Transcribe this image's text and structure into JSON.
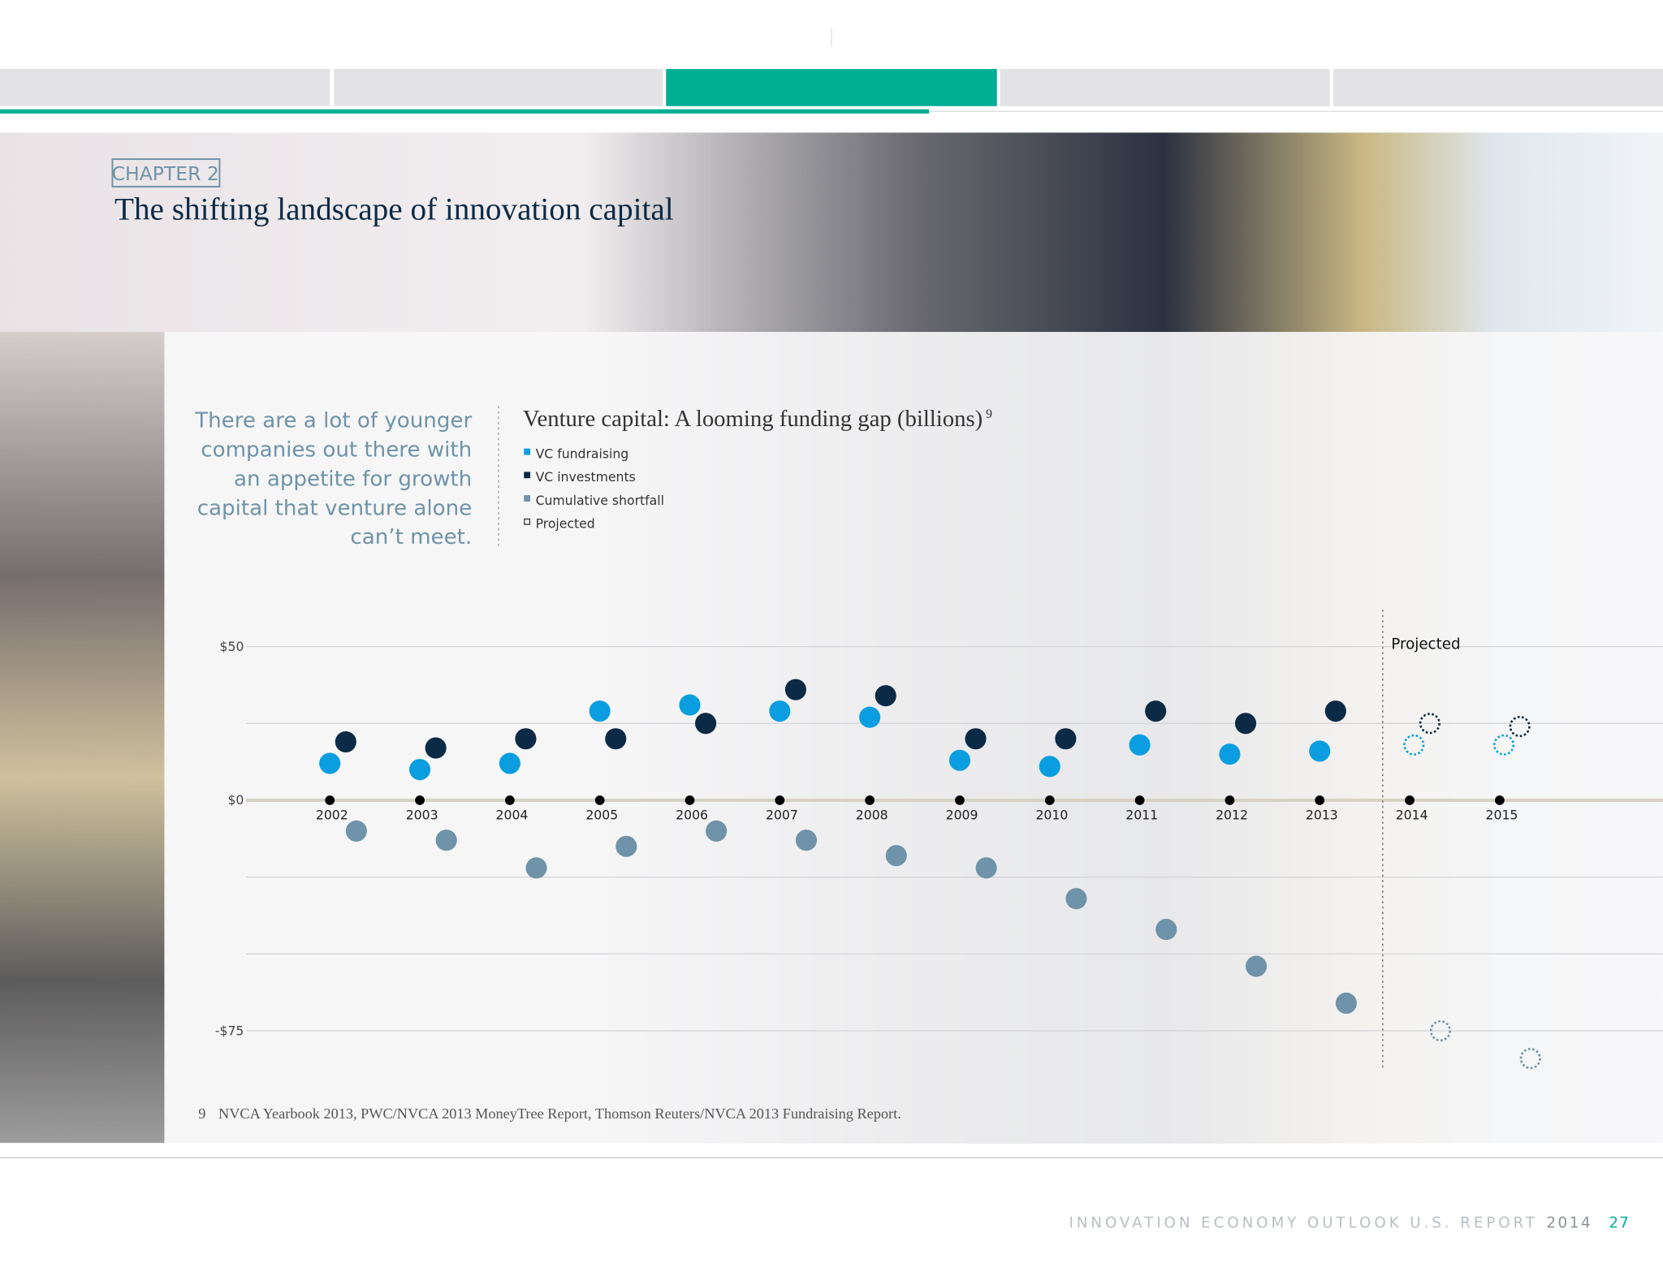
{
  "header": {
    "chapter": "CHAPTER 2",
    "title": "The shifting landscape of innovation capital"
  },
  "quote": [
    "There are a lot of younger",
    "companies out there with",
    "an appetite for growth",
    "capital that venture alone",
    "can’t meet."
  ],
  "chart_data": {
    "type": "scatter",
    "title": "Venture capital: A looming funding gap (billions)",
    "title_note": "9",
    "categories": [
      "2002",
      "2003",
      "2004",
      "2005",
      "2006",
      "2007",
      "2008",
      "2009",
      "2010",
      "2011",
      "2012",
      "2013",
      "2014",
      "2015"
    ],
    "series": [
      {
        "name": "VC fundraising",
        "color": "#0a9ee0",
        "values": [
          12,
          10,
          12,
          29,
          31,
          29,
          27,
          13,
          11,
          18,
          15,
          16,
          18,
          18
        ]
      },
      {
        "name": "VC investments",
        "color": "#0b2a45",
        "values": [
          19,
          17,
          20,
          20,
          25,
          36,
          34,
          20,
          20,
          29,
          25,
          29,
          25,
          24
        ]
      },
      {
        "name": "Cumulative shortfall",
        "color": "#6f93a8",
        "values": [
          -10,
          -13,
          -22,
          -15,
          -10,
          -13,
          -18,
          -22,
          -32,
          -42,
          -54,
          -66,
          -75,
          -84
        ]
      }
    ],
    "projected_legend": "Projected",
    "projected_label": "Projected",
    "projected_from": "2014",
    "ylim": [
      -88,
      62
    ],
    "yticks": [
      {
        "value": 50,
        "label": "$50"
      },
      {
        "value": 0,
        "label": "$0"
      },
      {
        "value": -75,
        "label": "-$75"
      }
    ],
    "minor_yticks": [
      25,
      -25,
      -50
    ],
    "grid": true
  },
  "footnote": {
    "number": "9",
    "text": "NVCA Yearbook 2013, PWC/NVCA 2013 MoneyTree Report, Thomson Reuters/NVCA 2013 Fundraising Report."
  },
  "footer": {
    "report": "INNOVATION ECONOMY OUTLOOK U.S. REPORT",
    "year": "2014",
    "page": "27"
  }
}
